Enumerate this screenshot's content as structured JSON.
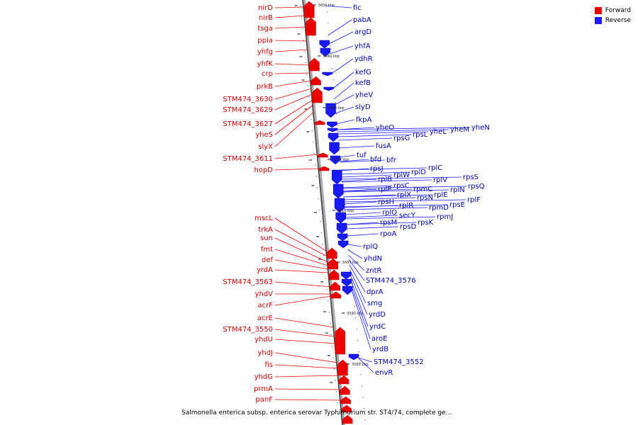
{
  "legend": {
    "forward_label": "Forward",
    "reverse_label": "Reverse",
    "forward_color": "#ee0000",
    "reverse_color": "#1a1aff"
  },
  "caption": "Salmonella enterica subsp. enterica serovar Typhimurium str. ST4/74, complete ge...",
  "scale_ticks": [
    "3650 kbp",
    "3640 kbp",
    "3630 kbp",
    "3620 kbp",
    "3610 kbp",
    "3600 kbp",
    "3590 kbp",
    "3580 kbp"
  ],
  "forward_genes": [
    "nirD",
    "nirB",
    "tsga",
    "ppia",
    "yhfg",
    "yhfK",
    "crp",
    "prkB",
    "STM474_3630",
    "STM474_3629",
    "STM474_3627",
    "yheS",
    "slyX",
    "STM474_3611",
    "hopD",
    "mscL",
    "trkA",
    "sun",
    "fmt",
    "def",
    "yrdA",
    "STM474_3563",
    "yhdV",
    "acrF",
    "acrE",
    "STM474_3550",
    "yhdU",
    "yhdJ",
    "fis",
    "yhdG",
    "prmA",
    "panF"
  ],
  "reverse_genes": [
    "fic",
    "pabA",
    "argD",
    "yhfA",
    "ydhR",
    "kefG",
    "kefB",
    "yheV",
    "slyD",
    "fkpA",
    "yheO",
    "yheN",
    "yheM",
    "yheL",
    "rpsL",
    "rpsG",
    "fusA",
    "tuf",
    "bfd",
    "bfr",
    "rpsJ",
    "rplC",
    "rplD",
    "rplW",
    "rplB",
    "rpsS",
    "rplV",
    "rpsC",
    "rplP",
    "rpmC",
    "rplN",
    "rpsQ",
    "rplX",
    "rpsN",
    "rplE",
    "rpsH",
    "rplF",
    "rplR",
    "rpmD",
    "rpsE",
    "rplO",
    "secY",
    "rpmJ",
    "rpsM",
    "rpsK",
    "rpsD",
    "rpoA",
    "rplQ",
    "yhdN",
    "zntR",
    "STM474_3576",
    "dprA",
    "smg",
    "yrdD",
    "yrdC",
    "aroE",
    "yrdB",
    "STM474_3552",
    "envR"
  ]
}
